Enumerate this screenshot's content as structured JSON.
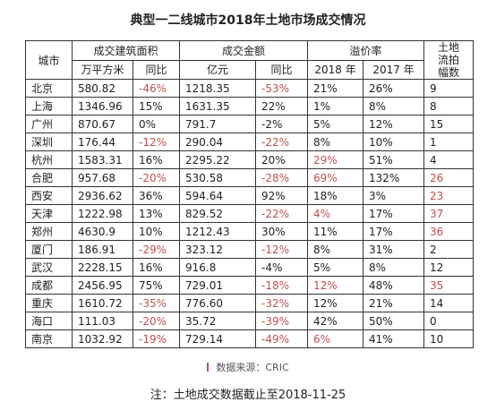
{
  "header": {
    "title": "典型一二线城市2018年土地市场成交情况"
  },
  "table": {
    "group_headers": [
      "城市",
      "成交建筑面积",
      "成交金额",
      "溢价率",
      "土地流拍幅数"
    ],
    "sub_headers": [
      "万平方米",
      "同比",
      "亿元",
      "同比",
      "2018 年",
      "2017 年"
    ],
    "rows": [
      [
        "北京",
        "580.82",
        {
          "text": "-46%",
          "color": "#c0504d"
        },
        "1218.35",
        {
          "text": "-53%",
          "color": "#c0504d"
        },
        "21%",
        "26%",
        "9"
      ],
      [
        "上海",
        "1346.96",
        "15%",
        "1631.35",
        "22%",
        "1%",
        "8%",
        "8"
      ],
      [
        "广州",
        "870.67",
        "0%",
        "791.7",
        "-2%",
        "5%",
        "12%",
        "15"
      ],
      [
        "深圳",
        "176.44",
        {
          "text": "-12%",
          "color": "#c0504d"
        },
        "290.04",
        {
          "text": "-22%",
          "color": "#c0504d"
        },
        "8%",
        "10%",
        "1"
      ],
      [
        "杭州",
        "1583.31",
        "16%",
        "2295.22",
        "20%",
        {
          "text": "29%",
          "color": "#c0504d"
        },
        "51%",
        "4"
      ],
      [
        "合肥",
        "957.68",
        {
          "text": "-20%",
          "color": "#c0504d"
        },
        "530.58",
        {
          "text": "-28%",
          "color": "#c0504d"
        },
        {
          "text": "69%",
          "color": "#c0504d"
        },
        "132%",
        {
          "text": "26",
          "color": "#c0504d"
        }
      ],
      [
        "西安",
        "2936.62",
        "36%",
        "594.64",
        "92%",
        "18%",
        "3%",
        {
          "text": "23",
          "color": "#c0504d"
        }
      ],
      [
        "天津",
        "1222.98",
        "13%",
        "829.52",
        {
          "text": "-22%",
          "color": "#c0504d"
        },
        {
          "text": "4%",
          "color": "#c0504d"
        },
        "17%",
        {
          "text": "37",
          "color": "#c0504d"
        }
      ],
      [
        "郑州",
        "4630.9",
        "10%",
        "1212.43",
        "30%",
        "11%",
        "17%",
        {
          "text": "36",
          "color": "#c0504d"
        }
      ],
      [
        "厦门",
        "186.91",
        {
          "text": "-29%",
          "color": "#c0504d"
        },
        "323.12",
        {
          "text": "-12%",
          "color": "#c0504d"
        },
        "8%",
        "31%",
        "2"
      ],
      [
        "武汉",
        "2228.15",
        "16%",
        "916.8",
        "-4%",
        "5%",
        "8%",
        "12"
      ],
      [
        "成都",
        "2456.95",
        "75%",
        "729.01",
        {
          "text": "-18%",
          "color": "#c0504d"
        },
        {
          "text": "12%",
          "color": "#c0504d"
        },
        "48%",
        {
          "text": "35",
          "color": "#c0504d"
        }
      ],
      [
        "重庆",
        "1610.72",
        {
          "text": "-35%",
          "color": "#c0504d"
        },
        "776.60",
        {
          "text": "-32%",
          "color": "#c0504d"
        },
        "12%",
        "21%",
        "14"
      ],
      [
        "海口",
        "111.03",
        {
          "text": "-20%",
          "color": "#c0504d"
        },
        "35.72",
        {
          "text": "-39%",
          "color": "#c0504d"
        },
        "42%",
        "50%",
        "0"
      ],
      [
        "南京",
        "1032.92",
        {
          "text": "-19%",
          "color": "#c0504d"
        },
        "729.14",
        {
          "text": "-49%",
          "color": "#c0504d"
        },
        {
          "text": "6%",
          "color": "#c0504d"
        },
        "41%",
        "10"
      ]
    ]
  },
  "source": "数据来源：CRIC",
  "note": "注：土地成交数据截止至2018-11-25"
}
